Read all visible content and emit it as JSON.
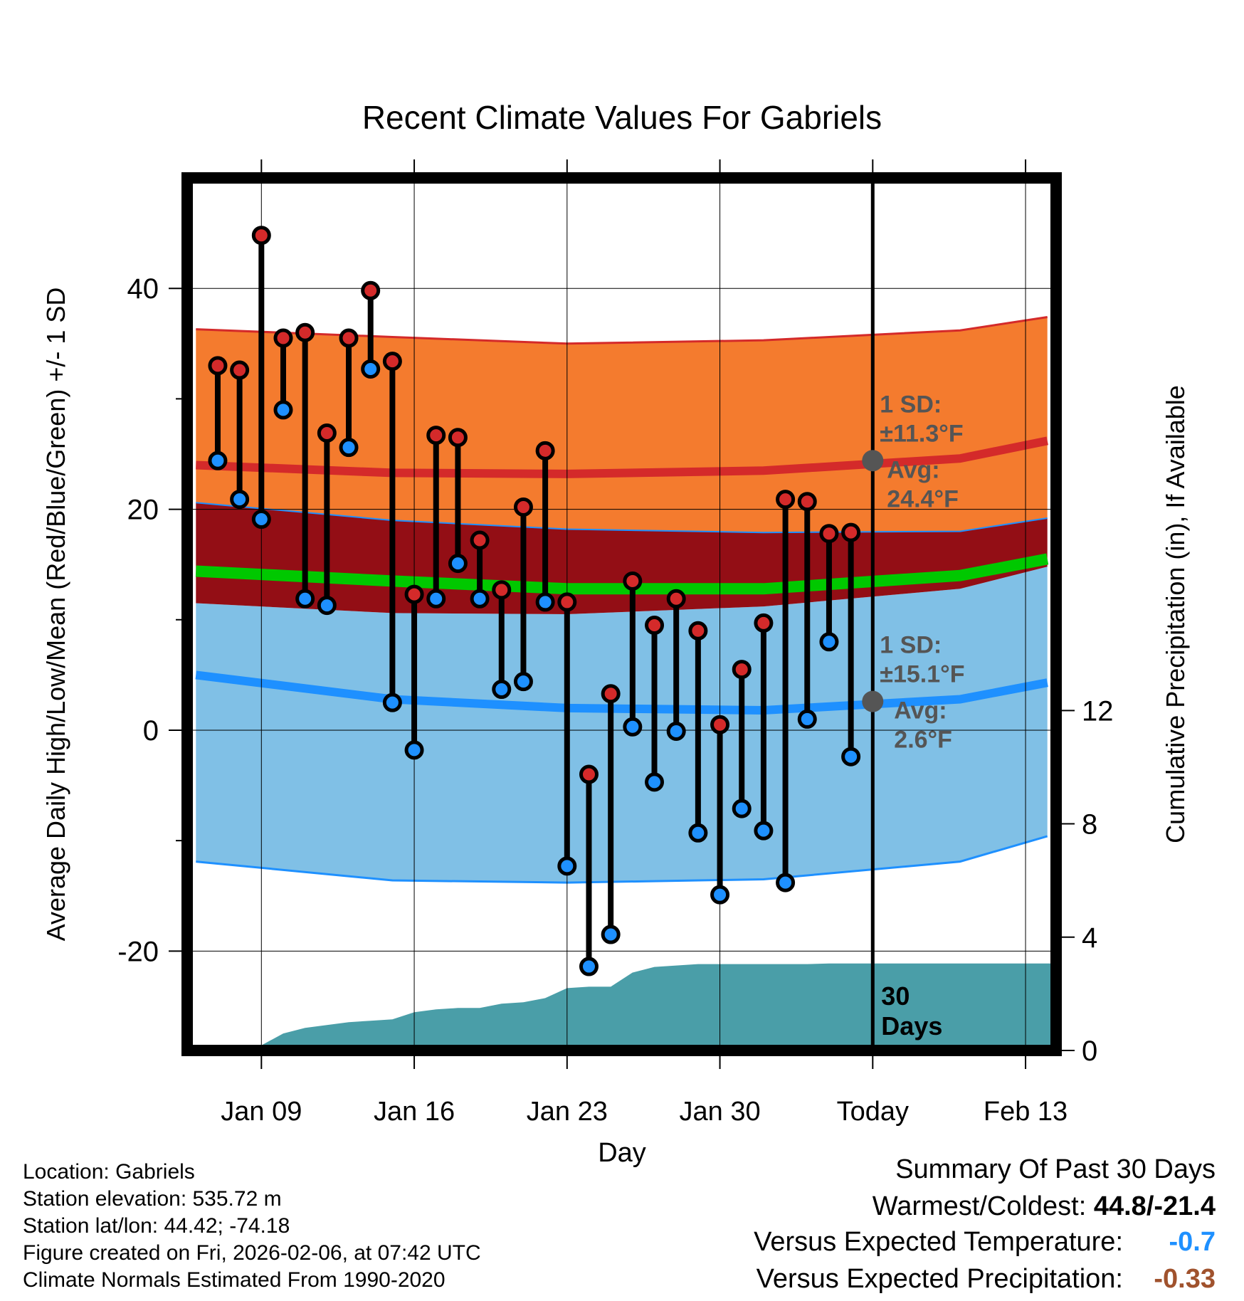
{
  "title": "Recent Climate Values For Gabriels",
  "chart_data": {
    "type": "line",
    "title": "Recent Climate Values For Gabriels",
    "xlabel": "Day",
    "ylabel": "Average Daily High/Low/Mean (Red/Blue/Green) +/- 1 SD",
    "y2label": "Cumulative Precipitation (in), If Available",
    "ylim": [
      -29,
      50
    ],
    "y2lim": [
      0,
      30.8
    ],
    "xlim": [
      -1.4,
      38.4
    ],
    "x_tick_days": [
      2,
      9,
      16,
      23,
      30,
      37
    ],
    "x_tick_labels": [
      "Jan 09",
      "Jan 16",
      "Jan 23",
      "Jan 30",
      "Today",
      "Feb 13"
    ],
    "y_ticks": [
      -20,
      0,
      20,
      40
    ],
    "y_tick_labels": [
      "-20",
      "0",
      "20",
      "40"
    ],
    "y2_ticks": [
      0,
      4,
      8,
      12
    ],
    "y2_tick_labels": [
      "0",
      "4",
      "8",
      "12"
    ],
    "today_day": 30,
    "period_label": [
      "30",
      "Days"
    ],
    "normal_high": {
      "day": [
        -1,
        8,
        16,
        25,
        34,
        38
      ],
      "avg": [
        24.0,
        23.3,
        23.2,
        23.5,
        24.6,
        26.2
      ],
      "upper": [
        36.3,
        35.6,
        35.0,
        35.3,
        36.2,
        37.4
      ],
      "lower": [
        20.6,
        19.0,
        18.2,
        17.9,
        18.0,
        19.2
      ],
      "sd_label": [
        "1 SD:",
        "±11.3°F"
      ],
      "avg_label": [
        "Avg:",
        "24.4°F"
      ],
      "today_avg": 24.4
    },
    "normal_low": {
      "day": [
        -1,
        8,
        16,
        25,
        34,
        38
      ],
      "avg": [
        5.0,
        2.8,
        2.0,
        1.8,
        2.8,
        4.3
      ],
      "upper": [
        11.5,
        10.6,
        10.5,
        11.2,
        12.8,
        14.8
      ],
      "lower": [
        -11.9,
        -13.6,
        -13.8,
        -13.5,
        -11.9,
        -9.6
      ],
      "sd_label": [
        "1 SD:",
        "±15.1°F"
      ],
      "avg_label": [
        "Avg:",
        "2.6°F"
      ],
      "today_avg": 2.6
    },
    "normal_mean": {
      "day": [
        -1,
        8,
        16,
        25,
        34,
        38
      ],
      "value": [
        14.4,
        13.5,
        12.8,
        12.8,
        14.0,
        15.5
      ]
    },
    "daily": {
      "day": [
        0,
        1,
        2,
        3,
        4,
        5,
        6,
        7,
        8,
        9,
        10,
        11,
        12,
        13,
        14,
        15,
        16,
        17,
        18,
        19,
        20,
        21,
        22,
        23,
        24,
        25,
        26,
        27,
        28,
        29
      ],
      "high": [
        33.0,
        32.6,
        44.8,
        35.5,
        36.0,
        26.9,
        35.5,
        39.8,
        33.4,
        12.3,
        26.7,
        26.5,
        17.2,
        12.7,
        20.2,
        25.3,
        11.6,
        -4.0,
        3.3,
        13.5,
        9.5,
        11.9,
        9.0,
        0.5,
        5.5,
        9.7,
        20.9,
        20.7,
        17.8,
        17.9
      ],
      "low": [
        24.4,
        20.9,
        19.1,
        29.0,
        11.9,
        11.3,
        25.6,
        32.7,
        2.5,
        -1.8,
        11.9,
        15.1,
        11.9,
        3.7,
        4.4,
        11.6,
        -12.3,
        -21.4,
        -18.5,
        0.3,
        -4.7,
        -0.1,
        -9.3,
        -14.9,
        -7.1,
        -9.1,
        -13.8,
        1.0,
        8.0,
        -2.4
      ]
    },
    "precip": {
      "day": [
        -1.3,
        0,
        1,
        2,
        3,
        4,
        5,
        6,
        7,
        8,
        9,
        10,
        11,
        12,
        13,
        14,
        15,
        16,
        17,
        18,
        19,
        20,
        21,
        22,
        23,
        24,
        25,
        26,
        27,
        28,
        29,
        30,
        38.4
      ],
      "value": [
        0,
        0,
        0.05,
        0.18,
        0.6,
        0.8,
        0.9,
        1.0,
        1.05,
        1.1,
        1.35,
        1.45,
        1.5,
        1.5,
        1.65,
        1.7,
        1.85,
        2.2,
        2.25,
        2.25,
        2.75,
        2.95,
        3.0,
        3.05,
        3.05,
        3.05,
        3.05,
        3.05,
        3.05,
        3.07,
        3.07,
        3.07,
        3.07
      ]
    }
  },
  "station": {
    "location": "Location: Gabriels",
    "elevation": "Station elevation: 535.72 m",
    "latlon": "Station lat/lon: 44.42; -74.18",
    "created": "Figure created on Fri, 2026-02-06, at 07:42 UTC",
    "normals": "Climate Normals Estimated From 1990-2020"
  },
  "summary": {
    "title": "Summary Of Past 30 Days",
    "warmest_coldest_label": "Warmest/Coldest: ",
    "warmest_coldest_value": "44.8/-21.4",
    "temp_label": "Versus Expected Temperature:",
    "temp_value": "-0.7",
    "temp_color": "#1e90ff",
    "precip_label": "Versus Expected Precipitation:",
    "precip_value": "-0.33",
    "precip_color": "#a0522d"
  },
  "colors": {
    "high_band": "#f47b2e",
    "high_line": "#d42a2a",
    "overlap_band": "#930e15",
    "mean_line": "#00c800",
    "low_band": "#80c0e6",
    "low_line": "#1e90ff",
    "precip_fill": "#4a9ea8",
    "high_dot": "#d42a2a",
    "low_dot": "#1e90ff",
    "label_gray": "#555555"
  }
}
